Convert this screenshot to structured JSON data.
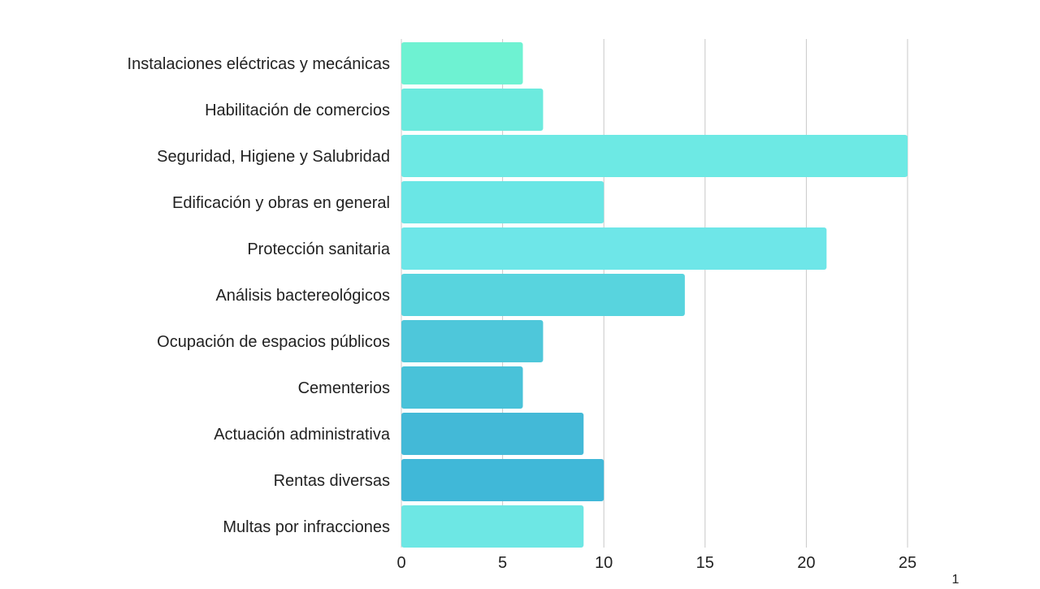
{
  "chart_data": {
    "type": "bar",
    "orientation": "horizontal",
    "categories": [
      "Instalaciones eléctricas y mecánicas",
      "Habilitación de comercios",
      "Seguridad, Higiene y Salubridad",
      "Edificación y obras en general",
      "Protección sanitaria",
      "Análisis bactereológicos",
      "Ocupación de espacios públicos",
      "Cementerios",
      "Actuación administrativa",
      "Rentas diversas",
      "Multas por infracciones"
    ],
    "values": [
      6,
      7,
      25,
      10,
      21,
      14,
      7,
      6,
      9,
      10,
      9
    ],
    "colors": [
      "#6ef2d2",
      "#6ceade",
      "#6de9e4",
      "#6ae6e5",
      "#6ee6e8",
      "#58d4de",
      "#4ec7da",
      "#49c2d9",
      "#43b9d7",
      "#40b8d8",
      "#6de7e4"
    ],
    "xlim": [
      0,
      25
    ],
    "xticks": [
      0,
      5,
      10,
      15,
      20,
      25
    ],
    "grid": true,
    "legend": false,
    "title": "",
    "xlabel": "",
    "ylabel": ""
  },
  "footer": {
    "corner_text": "1"
  }
}
